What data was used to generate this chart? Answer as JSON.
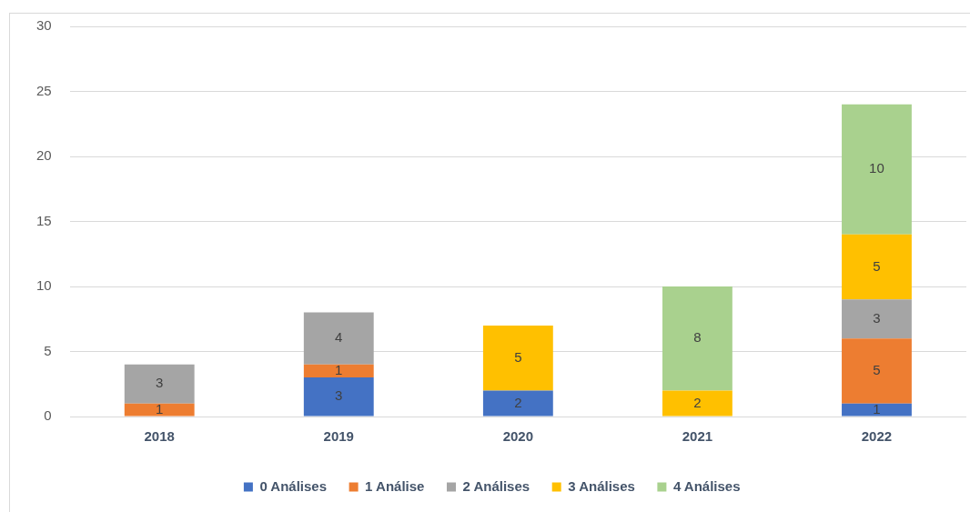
{
  "chart_data": {
    "type": "bar",
    "categories": [
      "2018",
      "2019",
      "2020",
      "2021",
      "2022"
    ],
    "stacked": true,
    "series": [
      {
        "name": "0 Análises",
        "color": "#4472c4",
        "values": [
          null,
          3,
          2,
          null,
          1
        ]
      },
      {
        "name": "1 Análise",
        "color": "#ed7d31",
        "values": [
          1,
          1,
          null,
          null,
          5
        ]
      },
      {
        "name": "2 Análises",
        "color": "#a5a5a5",
        "values": [
          3,
          4,
          null,
          null,
          3
        ]
      },
      {
        "name": "3 Análises",
        "color": "#ffc000",
        "values": [
          null,
          null,
          5,
          2,
          5
        ]
      },
      {
        "name": "4 Análises",
        "color": "#a9d18e",
        "values": [
          null,
          null,
          null,
          8,
          10
        ]
      }
    ],
    "ylim": [
      0,
      30
    ],
    "yticks": [
      0,
      5,
      10,
      15,
      20,
      25,
      30
    ],
    "grid": "y",
    "legend": "bottom",
    "data_labels": true
  }
}
